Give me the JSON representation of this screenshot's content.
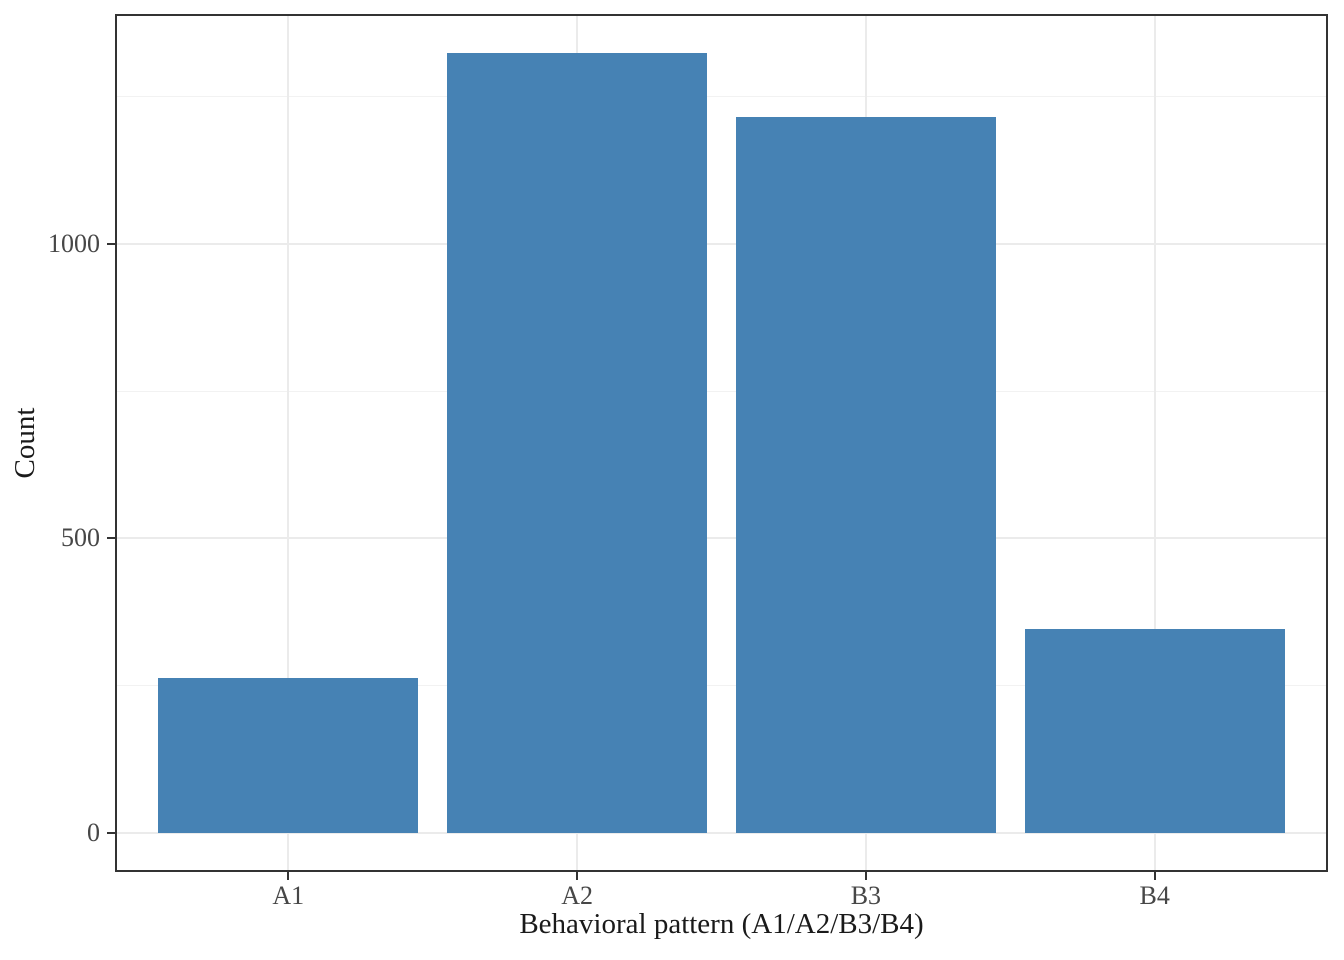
{
  "chart_data": {
    "type": "bar",
    "categories": [
      "A1",
      "A2",
      "B3",
      "B4"
    ],
    "values": [
      263,
      1324,
      1215,
      347
    ],
    "title": "",
    "xlabel": "Behavioral pattern (A1/A2/B3/B4)",
    "ylabel": "Count",
    "ylim": [
      -66.2,
      1390.2
    ],
    "y_major_ticks": [
      0,
      500,
      1000
    ],
    "y_minor_gridlines": [
      250,
      750,
      1250
    ],
    "grid": true,
    "legend": "none",
    "band_expansion": 0.6,
    "bar_rel_width": 0.9,
    "bar_color": "#4682B4",
    "colors": {
      "background": "#FFFFFF",
      "panel_border": "#333333",
      "grid_major": "#EBEBEB",
      "grid_minor": "#F2F2F2",
      "tick_mark": "#333333",
      "tick_label": "#474747",
      "axis_title": "#1A1A1A"
    }
  }
}
